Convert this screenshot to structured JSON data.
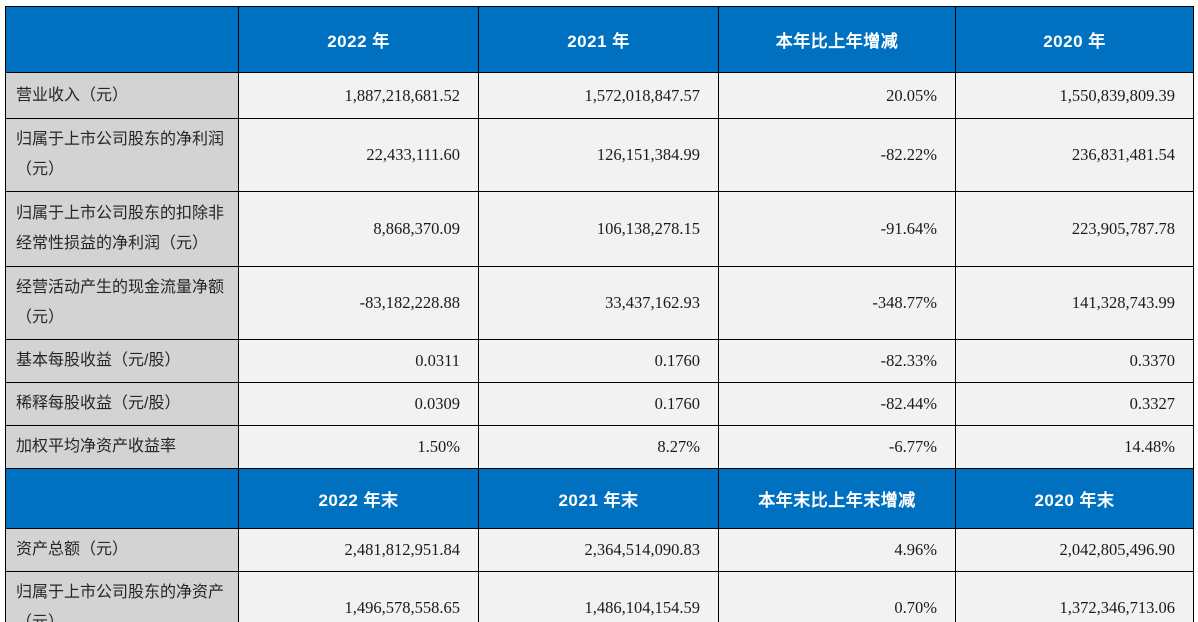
{
  "colors": {
    "header_bg": "#0071c1",
    "header_text": "#ffffff",
    "label_bg": "#d3d3d3",
    "value_bg": "#f2f2f2",
    "border": "#000000"
  },
  "chart_data": {
    "type": "table",
    "title": "",
    "sections": [
      {
        "headers": [
          "",
          "2022 年",
          "2021 年",
          "本年比上年增减",
          "2020 年"
        ],
        "rows": [
          [
            "营业收入（元）",
            "1,887,218,681.52",
            "1,572,018,847.57",
            "20.05%",
            "1,550,839,809.39"
          ],
          [
            "归属于上市公司股东的净利润（元）",
            "22,433,111.60",
            "126,151,384.99",
            "-82.22%",
            "236,831,481.54"
          ],
          [
            "归属于上市公司股东的扣除非经常性损益的净利润（元）",
            "8,868,370.09",
            "106,138,278.15",
            "-91.64%",
            "223,905,787.78"
          ],
          [
            "经营活动产生的现金流量净额（元）",
            "-83,182,228.88",
            "33,437,162.93",
            "-348.77%",
            "141,328,743.99"
          ],
          [
            "基本每股收益（元/股）",
            "0.0311",
            "0.1760",
            "-82.33%",
            "0.3370"
          ],
          [
            "稀释每股收益（元/股）",
            "0.0309",
            "0.1760",
            "-82.44%",
            "0.3327"
          ],
          [
            "加权平均净资产收益率",
            "1.50%",
            "8.27%",
            "-6.77%",
            "14.48%"
          ]
        ]
      },
      {
        "headers": [
          "",
          "2022 年末",
          "2021 年末",
          "本年末比上年末增减",
          "2020 年末"
        ],
        "rows": [
          [
            "资产总额（元）",
            "2,481,812,951.84",
            "2,364,514,090.83",
            "4.96%",
            "2,042,805,496.90"
          ],
          [
            "归属于上市公司股东的净资产（元）",
            "1,496,578,558.65",
            "1,486,104,154.59",
            "0.70%",
            "1,372,346,713.06"
          ]
        ]
      }
    ]
  },
  "annual": {
    "headers": {
      "y2022": "2022 年",
      "y2021": "2021 年",
      "change": "本年比上年增减",
      "y2020": "2020 年"
    },
    "rows": [
      {
        "label": "营业收入（元）",
        "y2022": "1,887,218,681.52",
        "y2021": "1,572,018,847.57",
        "change": "20.05%",
        "y2020": "1,550,839,809.39"
      },
      {
        "label": "归属于上市公司股东的净利润（元）",
        "y2022": "22,433,111.60",
        "y2021": "126,151,384.99",
        "change": "-82.22%",
        "y2020": "236,831,481.54"
      },
      {
        "label": "归属于上市公司股东的扣除非经常性损益的净利润（元）",
        "y2022": "8,868,370.09",
        "y2021": "106,138,278.15",
        "change": "-91.64%",
        "y2020": "223,905,787.78"
      },
      {
        "label": "经营活动产生的现金流量净额（元）",
        "y2022": "-83,182,228.88",
        "y2021": "33,437,162.93",
        "change": "-348.77%",
        "y2020": "141,328,743.99"
      },
      {
        "label": "基本每股收益（元/股）",
        "y2022": "0.0311",
        "y2021": "0.1760",
        "change": "-82.33%",
        "y2020": "0.3370"
      },
      {
        "label": "稀释每股收益（元/股）",
        "y2022": "0.0309",
        "y2021": "0.1760",
        "change": "-82.44%",
        "y2020": "0.3327"
      },
      {
        "label": "加权平均净资产收益率",
        "y2022": "1.50%",
        "y2021": "8.27%",
        "change": "-6.77%",
        "y2020": "14.48%"
      }
    ]
  },
  "yearend": {
    "headers": {
      "y2022": "2022 年末",
      "y2021": "2021 年末",
      "change": "本年末比上年末增减",
      "y2020": "2020 年末"
    },
    "rows": [
      {
        "label": "资产总额（元）",
        "y2022": "2,481,812,951.84",
        "y2021": "2,364,514,090.83",
        "change": "4.96%",
        "y2020": "2,042,805,496.90"
      },
      {
        "label": "归属于上市公司股东的净资产（元）",
        "y2022": "1,496,578,558.65",
        "y2021": "1,486,104,154.59",
        "change": "0.70%",
        "y2020": "1,372,346,713.06"
      }
    ]
  }
}
